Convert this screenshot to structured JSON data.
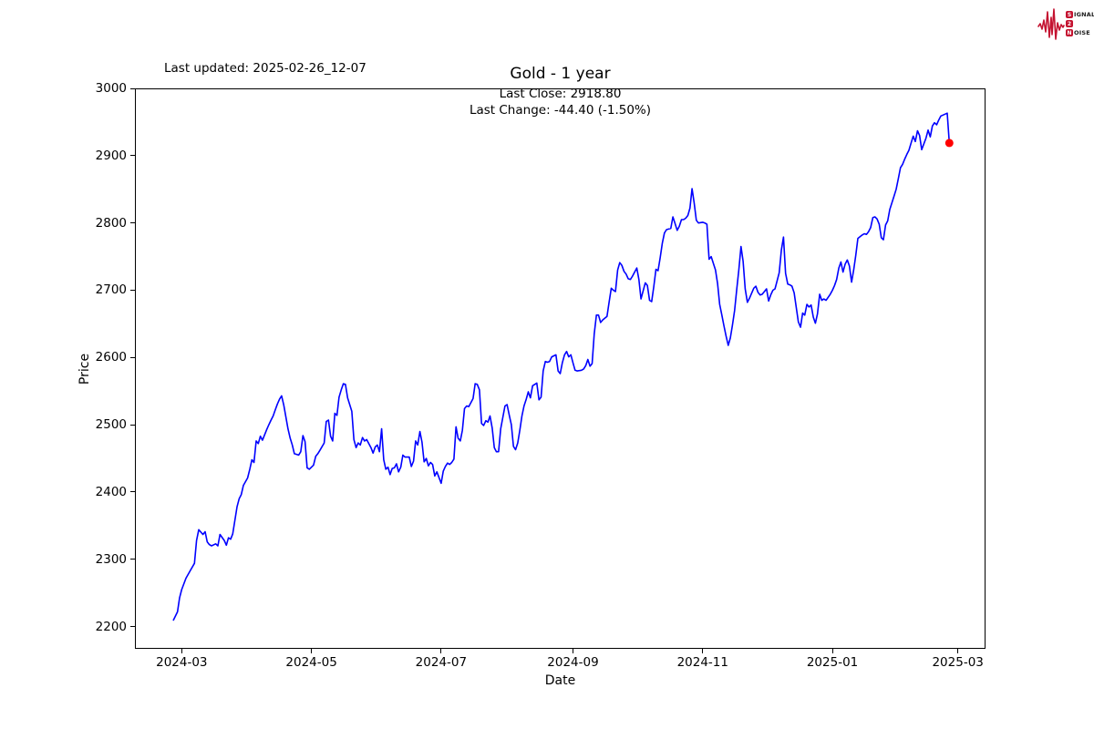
{
  "header": {
    "last_updated": "Last updated: 2025-02-26_12-07"
  },
  "logo": {
    "line1_boxed": "S",
    "line1_rest": "IGNAL",
    "line2_boxed": "2",
    "line3_boxed": "N",
    "line3_rest": "OISE",
    "accent_color": "#c41230"
  },
  "chart_data": {
    "type": "line",
    "title": "Gold - 1 year",
    "annotation": [
      "Last Close: 2918.80",
      "Last Change: -44.40 (-1.50%)"
    ],
    "last_close": 2918.8,
    "last_change": "-44.40 (-1.50%)",
    "xlabel": "Date",
    "ylabel": "Price",
    "line_color": "#0000ff",
    "marker_color": "#ff0000",
    "grid": false,
    "xlim": [
      "2024-02-08",
      "2025-03-14"
    ],
    "ylim": [
      2167,
      3000
    ],
    "y_ticks": [
      2200,
      2300,
      2400,
      2500,
      2600,
      2700,
      2800,
      2900,
      3000
    ],
    "x_ticks": [
      {
        "label": "2024-03",
        "date": "2024-03-01"
      },
      {
        "label": "2024-05",
        "date": "2024-05-01"
      },
      {
        "label": "2024-07",
        "date": "2024-07-01"
      },
      {
        "label": "2024-09",
        "date": "2024-09-01"
      },
      {
        "label": "2024-11",
        "date": "2024-11-01"
      },
      {
        "label": "2025-01",
        "date": "2025-01-01"
      },
      {
        "label": "2025-03",
        "date": "2025-03-01"
      }
    ],
    "series": [
      [
        "2024-02-26",
        2209
      ],
      [
        "2024-02-28",
        2222
      ],
      [
        "2024-02-29",
        2243
      ],
      [
        "2024-03-01",
        2255
      ],
      [
        "2024-03-03",
        2272
      ],
      [
        "2024-03-05",
        2283
      ],
      [
        "2024-03-07",
        2294
      ],
      [
        "2024-03-08",
        2328
      ],
      [
        "2024-03-09",
        2344
      ],
      [
        "2024-03-11",
        2337
      ],
      [
        "2024-03-12",
        2341
      ],
      [
        "2024-03-13",
        2326
      ],
      [
        "2024-03-14",
        2322
      ],
      [
        "2024-03-15",
        2320
      ],
      [
        "2024-03-17",
        2323
      ],
      [
        "2024-03-18",
        2320
      ],
      [
        "2024-03-19",
        2337
      ],
      [
        "2024-03-21",
        2328
      ],
      [
        "2024-03-22",
        2321
      ],
      [
        "2024-03-23",
        2332
      ],
      [
        "2024-03-24",
        2330
      ],
      [
        "2024-03-25",
        2338
      ],
      [
        "2024-03-27",
        2378
      ],
      [
        "2024-03-28",
        2390
      ],
      [
        "2024-03-29",
        2396
      ],
      [
        "2024-03-30",
        2410
      ],
      [
        "2024-04-01",
        2421
      ],
      [
        "2024-04-02",
        2434
      ],
      [
        "2024-04-03",
        2448
      ],
      [
        "2024-04-04",
        2444
      ],
      [
        "2024-04-05",
        2476
      ],
      [
        "2024-04-06",
        2472
      ],
      [
        "2024-04-07",
        2483
      ],
      [
        "2024-04-08",
        2477
      ],
      [
        "2024-04-10",
        2493
      ],
      [
        "2024-04-11",
        2500
      ],
      [
        "2024-04-12",
        2507
      ],
      [
        "2024-04-13",
        2513
      ],
      [
        "2024-04-14",
        2522
      ],
      [
        "2024-04-15",
        2531
      ],
      [
        "2024-04-16",
        2538
      ],
      [
        "2024-04-17",
        2543
      ],
      [
        "2024-04-18",
        2529
      ],
      [
        "2024-04-20",
        2494
      ],
      [
        "2024-04-21",
        2480
      ],
      [
        "2024-04-22",
        2470
      ],
      [
        "2024-04-23",
        2457
      ],
      [
        "2024-04-25",
        2455
      ],
      [
        "2024-04-26",
        2460
      ],
      [
        "2024-04-27",
        2484
      ],
      [
        "2024-04-28",
        2475
      ],
      [
        "2024-04-29",
        2436
      ],
      [
        "2024-04-30",
        2434
      ],
      [
        "2024-05-02",
        2440
      ],
      [
        "2024-05-03",
        2453
      ],
      [
        "2024-05-04",
        2457
      ],
      [
        "2024-05-05",
        2462
      ],
      [
        "2024-05-07",
        2473
      ],
      [
        "2024-05-08",
        2505
      ],
      [
        "2024-05-09",
        2507
      ],
      [
        "2024-05-10",
        2483
      ],
      [
        "2024-05-11",
        2476
      ],
      [
        "2024-05-12",
        2517
      ],
      [
        "2024-05-13",
        2514
      ],
      [
        "2024-05-14",
        2541
      ],
      [
        "2024-05-15",
        2552
      ],
      [
        "2024-05-16",
        2561
      ],
      [
        "2024-05-17",
        2560
      ],
      [
        "2024-05-18",
        2540
      ],
      [
        "2024-05-20",
        2520
      ],
      [
        "2024-05-21",
        2478
      ],
      [
        "2024-05-22",
        2466
      ],
      [
        "2024-05-23",
        2473
      ],
      [
        "2024-05-24",
        2470
      ],
      [
        "2024-05-25",
        2481
      ],
      [
        "2024-05-26",
        2476
      ],
      [
        "2024-05-27",
        2478
      ],
      [
        "2024-05-29",
        2466
      ],
      [
        "2024-05-30",
        2458
      ],
      [
        "2024-05-31",
        2467
      ],
      [
        "2024-06-01",
        2470
      ],
      [
        "2024-06-02",
        2460
      ],
      [
        "2024-06-03",
        2494
      ],
      [
        "2024-06-04",
        2448
      ],
      [
        "2024-06-05",
        2434
      ],
      [
        "2024-06-06",
        2437
      ],
      [
        "2024-06-07",
        2426
      ],
      [
        "2024-06-08",
        2435
      ],
      [
        "2024-06-09",
        2436
      ],
      [
        "2024-06-10",
        2442
      ],
      [
        "2024-06-11",
        2430
      ],
      [
        "2024-06-12",
        2437
      ],
      [
        "2024-06-13",
        2455
      ],
      [
        "2024-06-14",
        2452
      ],
      [
        "2024-06-16",
        2452
      ],
      [
        "2024-06-17",
        2438
      ],
      [
        "2024-06-18",
        2446
      ],
      [
        "2024-06-19",
        2476
      ],
      [
        "2024-06-20",
        2470
      ],
      [
        "2024-06-21",
        2490
      ],
      [
        "2024-06-22",
        2474
      ],
      [
        "2024-06-23",
        2445
      ],
      [
        "2024-06-24",
        2450
      ],
      [
        "2024-06-25",
        2439
      ],
      [
        "2024-06-26",
        2444
      ],
      [
        "2024-06-27",
        2441
      ],
      [
        "2024-06-28",
        2424
      ],
      [
        "2024-06-29",
        2430
      ],
      [
        "2024-07-01",
        2413
      ],
      [
        "2024-07-02",
        2431
      ],
      [
        "2024-07-03",
        2438
      ],
      [
        "2024-07-04",
        2443
      ],
      [
        "2024-07-05",
        2441
      ],
      [
        "2024-07-06",
        2444
      ],
      [
        "2024-07-07",
        2449
      ],
      [
        "2024-07-08",
        2497
      ],
      [
        "2024-07-09",
        2480
      ],
      [
        "2024-07-10",
        2476
      ],
      [
        "2024-07-11",
        2492
      ],
      [
        "2024-07-12",
        2524
      ],
      [
        "2024-07-13",
        2528
      ],
      [
        "2024-07-14",
        2527
      ],
      [
        "2024-07-16",
        2539
      ],
      [
        "2024-07-17",
        2561
      ],
      [
        "2024-07-18",
        2560
      ],
      [
        "2024-07-19",
        2552
      ],
      [
        "2024-07-20",
        2502
      ],
      [
        "2024-07-21",
        2499
      ],
      [
        "2024-07-22",
        2506
      ],
      [
        "2024-07-23",
        2504
      ],
      [
        "2024-07-24",
        2513
      ],
      [
        "2024-07-25",
        2495
      ],
      [
        "2024-07-26",
        2466
      ],
      [
        "2024-07-27",
        2460
      ],
      [
        "2024-07-28",
        2460
      ],
      [
        "2024-07-29",
        2494
      ],
      [
        "2024-07-31",
        2528
      ],
      [
        "2024-08-01",
        2530
      ],
      [
        "2024-08-02",
        2515
      ],
      [
        "2024-08-03",
        2500
      ],
      [
        "2024-08-04",
        2468
      ],
      [
        "2024-08-05",
        2463
      ],
      [
        "2024-08-06",
        2473
      ],
      [
        "2024-08-07",
        2492
      ],
      [
        "2024-08-08",
        2513
      ],
      [
        "2024-08-09",
        2528
      ],
      [
        "2024-08-10",
        2538
      ],
      [
        "2024-08-11",
        2549
      ],
      [
        "2024-08-12",
        2540
      ],
      [
        "2024-08-13",
        2558
      ],
      [
        "2024-08-15",
        2562
      ],
      [
        "2024-08-16",
        2537
      ],
      [
        "2024-08-17",
        2541
      ],
      [
        "2024-08-18",
        2580
      ],
      [
        "2024-08-19",
        2594
      ],
      [
        "2024-08-20",
        2593
      ],
      [
        "2024-08-21",
        2594
      ],
      [
        "2024-08-22",
        2601
      ],
      [
        "2024-08-24",
        2604
      ],
      [
        "2024-08-25",
        2580
      ],
      [
        "2024-08-26",
        2576
      ],
      [
        "2024-08-27",
        2592
      ],
      [
        "2024-08-28",
        2604
      ],
      [
        "2024-08-29",
        2609
      ],
      [
        "2024-08-30",
        2601
      ],
      [
        "2024-08-31",
        2604
      ],
      [
        "2024-09-01",
        2592
      ],
      [
        "2024-09-02",
        2581
      ],
      [
        "2024-09-03",
        2580
      ],
      [
        "2024-09-05",
        2581
      ],
      [
        "2024-09-06",
        2583
      ],
      [
        "2024-09-07",
        2588
      ],
      [
        "2024-09-08",
        2597
      ],
      [
        "2024-09-09",
        2587
      ],
      [
        "2024-09-10",
        2591
      ],
      [
        "2024-09-11",
        2635
      ],
      [
        "2024-09-12",
        2663
      ],
      [
        "2024-09-13",
        2663
      ],
      [
        "2024-09-14",
        2652
      ],
      [
        "2024-09-15",
        2656
      ],
      [
        "2024-09-17",
        2661
      ],
      [
        "2024-09-18",
        2682
      ],
      [
        "2024-09-19",
        2703
      ],
      [
        "2024-09-20",
        2700
      ],
      [
        "2024-09-21",
        2698
      ],
      [
        "2024-09-22",
        2730
      ],
      [
        "2024-09-23",
        2741
      ],
      [
        "2024-09-24",
        2737
      ],
      [
        "2024-09-25",
        2728
      ],
      [
        "2024-09-26",
        2724
      ],
      [
        "2024-09-27",
        2717
      ],
      [
        "2024-09-28",
        2716
      ],
      [
        "2024-09-29",
        2721
      ],
      [
        "2024-09-30",
        2727
      ],
      [
        "2024-10-01",
        2733
      ],
      [
        "2024-10-02",
        2716
      ],
      [
        "2024-10-03",
        2687
      ],
      [
        "2024-10-05",
        2711
      ],
      [
        "2024-10-06",
        2707
      ],
      [
        "2024-10-07",
        2685
      ],
      [
        "2024-10-08",
        2683
      ],
      [
        "2024-10-09",
        2705
      ],
      [
        "2024-10-10",
        2731
      ],
      [
        "2024-10-11",
        2729
      ],
      [
        "2024-10-12",
        2748
      ],
      [
        "2024-10-13",
        2770
      ],
      [
        "2024-10-14",
        2785
      ],
      [
        "2024-10-15",
        2790
      ],
      [
        "2024-10-17",
        2792
      ],
      [
        "2024-10-18",
        2809
      ],
      [
        "2024-10-19",
        2799
      ],
      [
        "2024-10-20",
        2789
      ],
      [
        "2024-10-21",
        2795
      ],
      [
        "2024-10-22",
        2805
      ],
      [
        "2024-10-23",
        2805
      ],
      [
        "2024-10-24",
        2807
      ],
      [
        "2024-10-25",
        2811
      ],
      [
        "2024-10-26",
        2822
      ],
      [
        "2024-10-27",
        2851
      ],
      [
        "2024-10-28",
        2830
      ],
      [
        "2024-10-29",
        2804
      ],
      [
        "2024-10-30",
        2800
      ],
      [
        "2024-11-01",
        2801
      ],
      [
        "2024-11-02",
        2800
      ],
      [
        "2024-11-03",
        2798
      ],
      [
        "2024-11-04",
        2746
      ],
      [
        "2024-11-05",
        2750
      ],
      [
        "2024-11-07",
        2730
      ],
      [
        "2024-11-08",
        2710
      ],
      [
        "2024-11-09",
        2679
      ],
      [
        "2024-11-10",
        2663
      ],
      [
        "2024-11-11",
        2647
      ],
      [
        "2024-11-12",
        2632
      ],
      [
        "2024-11-13",
        2618
      ],
      [
        "2024-11-14",
        2629
      ],
      [
        "2024-11-15",
        2648
      ],
      [
        "2024-11-16",
        2670
      ],
      [
        "2024-11-17",
        2701
      ],
      [
        "2024-11-18",
        2730
      ],
      [
        "2024-11-19",
        2765
      ],
      [
        "2024-11-20",
        2743
      ],
      [
        "2024-11-21",
        2702
      ],
      [
        "2024-11-22",
        2682
      ],
      [
        "2024-11-23",
        2688
      ],
      [
        "2024-11-25",
        2703
      ],
      [
        "2024-11-26",
        2706
      ],
      [
        "2024-11-27",
        2697
      ],
      [
        "2024-11-28",
        2693
      ],
      [
        "2024-11-29",
        2694
      ],
      [
        "2024-12-01",
        2702
      ],
      [
        "2024-12-02",
        2684
      ],
      [
        "2024-12-03",
        2693
      ],
      [
        "2024-12-04",
        2700
      ],
      [
        "2024-12-05",
        2702
      ],
      [
        "2024-12-06",
        2714
      ],
      [
        "2024-12-07",
        2726
      ],
      [
        "2024-12-08",
        2760
      ],
      [
        "2024-12-09",
        2779
      ],
      [
        "2024-12-10",
        2725
      ],
      [
        "2024-12-11",
        2709
      ],
      [
        "2024-12-12",
        2708
      ],
      [
        "2024-12-13",
        2706
      ],
      [
        "2024-12-14",
        2696
      ],
      [
        "2024-12-16",
        2653
      ],
      [
        "2024-12-17",
        2645
      ],
      [
        "2024-12-18",
        2666
      ],
      [
        "2024-12-19",
        2663
      ],
      [
        "2024-12-20",
        2679
      ],
      [
        "2024-12-21",
        2675
      ],
      [
        "2024-12-22",
        2678
      ],
      [
        "2024-12-23",
        2660
      ],
      [
        "2024-12-24",
        2651
      ],
      [
        "2024-12-25",
        2665
      ],
      [
        "2024-12-26",
        2694
      ],
      [
        "2024-12-27",
        2685
      ],
      [
        "2024-12-28",
        2687
      ],
      [
        "2024-12-29",
        2685
      ],
      [
        "2024-12-31",
        2694
      ],
      [
        "2025-01-01",
        2700
      ],
      [
        "2025-01-02",
        2707
      ],
      [
        "2025-01-03",
        2716
      ],
      [
        "2025-01-04",
        2733
      ],
      [
        "2025-01-05",
        2742
      ],
      [
        "2025-01-06",
        2727
      ],
      [
        "2025-01-07",
        2739
      ],
      [
        "2025-01-08",
        2745
      ],
      [
        "2025-01-09",
        2736
      ],
      [
        "2025-01-10",
        2712
      ],
      [
        "2025-01-11",
        2730
      ],
      [
        "2025-01-12",
        2752
      ],
      [
        "2025-01-13",
        2777
      ],
      [
        "2025-01-15",
        2782
      ],
      [
        "2025-01-16",
        2784
      ],
      [
        "2025-01-17",
        2783
      ],
      [
        "2025-01-18",
        2787
      ],
      [
        "2025-01-19",
        2793
      ],
      [
        "2025-01-20",
        2808
      ],
      [
        "2025-01-21",
        2809
      ],
      [
        "2025-01-22",
        2806
      ],
      [
        "2025-01-23",
        2798
      ],
      [
        "2025-01-24",
        2778
      ],
      [
        "2025-01-25",
        2775
      ],
      [
        "2025-01-26",
        2797
      ],
      [
        "2025-01-27",
        2803
      ],
      [
        "2025-01-28",
        2820
      ],
      [
        "2025-01-30",
        2840
      ],
      [
        "2025-01-31",
        2850
      ],
      [
        "2025-02-01",
        2866
      ],
      [
        "2025-02-02",
        2882
      ],
      [
        "2025-02-03",
        2887
      ],
      [
        "2025-02-04",
        2895
      ],
      [
        "2025-02-05",
        2902
      ],
      [
        "2025-02-06",
        2908
      ],
      [
        "2025-02-07",
        2919
      ],
      [
        "2025-02-08",
        2929
      ],
      [
        "2025-02-09",
        2921
      ],
      [
        "2025-02-10",
        2937
      ],
      [
        "2025-02-11",
        2930
      ],
      [
        "2025-02-12",
        2909
      ],
      [
        "2025-02-14",
        2926
      ],
      [
        "2025-02-15",
        2938
      ],
      [
        "2025-02-16",
        2928
      ],
      [
        "2025-02-17",
        2944
      ],
      [
        "2025-02-18",
        2949
      ],
      [
        "2025-02-19",
        2946
      ],
      [
        "2025-02-20",
        2953
      ],
      [
        "2025-02-21",
        2959
      ],
      [
        "2025-02-24",
        2963.2
      ],
      [
        "2025-02-25",
        2918.8
      ]
    ]
  }
}
